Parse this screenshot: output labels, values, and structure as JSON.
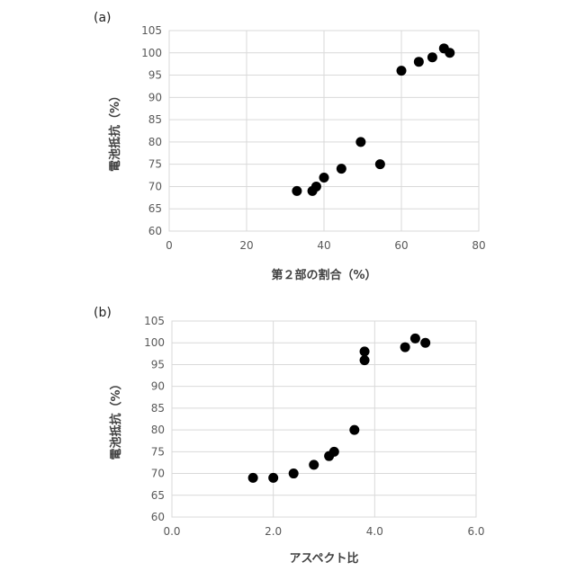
{
  "chart_data": [
    {
      "type": "scatter",
      "panel_label": "(a)",
      "xlabel": "第２部の割合（%）",
      "ylabel": "電池抵抗（%）",
      "xlim": [
        0,
        80
      ],
      "ylim": [
        60,
        105
      ],
      "x_ticks": [
        "0",
        "20",
        "40",
        "60",
        "80"
      ],
      "y_ticks": [
        "60",
        "65",
        "70",
        "75",
        "80",
        "85",
        "90",
        "95",
        "100",
        "105"
      ],
      "grid": true,
      "marker_color": "#000000",
      "points": [
        {
          "x": 33,
          "y": 69
        },
        {
          "x": 37,
          "y": 69
        },
        {
          "x": 38,
          "y": 70
        },
        {
          "x": 40,
          "y": 72
        },
        {
          "x": 44.5,
          "y": 74
        },
        {
          "x": 49.5,
          "y": 80
        },
        {
          "x": 54.5,
          "y": 75
        },
        {
          "x": 60,
          "y": 96
        },
        {
          "x": 64.5,
          "y": 98
        },
        {
          "x": 68,
          "y": 99
        },
        {
          "x": 71,
          "y": 101
        },
        {
          "x": 72.5,
          "y": 100
        }
      ]
    },
    {
      "type": "scatter",
      "panel_label": "(b)",
      "xlabel": "アスペクト比",
      "ylabel": "電池抵抗（%）",
      "xlim": [
        0,
        6
      ],
      "ylim": [
        60,
        105
      ],
      "x_ticks": [
        "0.0",
        "2.0",
        "4.0",
        "6.0"
      ],
      "y_ticks": [
        "60",
        "65",
        "70",
        "75",
        "80",
        "85",
        "90",
        "95",
        "100",
        "105"
      ],
      "grid": true,
      "marker_color": "#000000",
      "points": [
        {
          "x": 1.6,
          "y": 69
        },
        {
          "x": 2.0,
          "y": 69
        },
        {
          "x": 2.4,
          "y": 70
        },
        {
          "x": 2.8,
          "y": 72
        },
        {
          "x": 3.1,
          "y": 74
        },
        {
          "x": 3.2,
          "y": 75
        },
        {
          "x": 3.6,
          "y": 80
        },
        {
          "x": 3.8,
          "y": 96
        },
        {
          "x": 3.8,
          "y": 98
        },
        {
          "x": 4.6,
          "y": 99
        },
        {
          "x": 4.8,
          "y": 101
        },
        {
          "x": 5.0,
          "y": 100
        }
      ]
    }
  ]
}
